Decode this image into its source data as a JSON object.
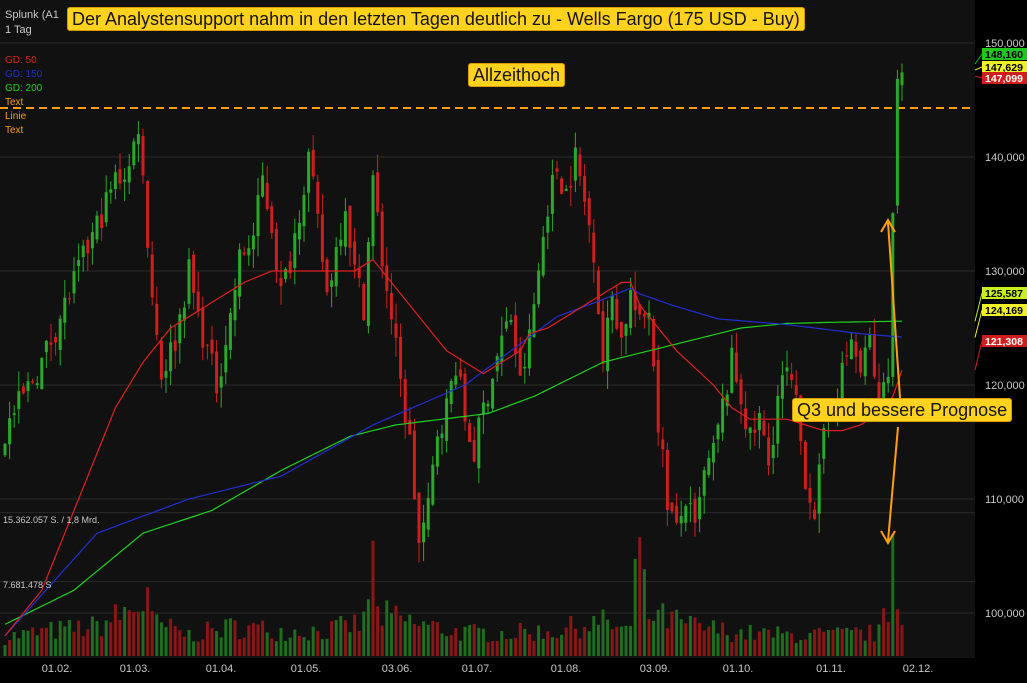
{
  "header": {
    "symbol": "Splunk (A1",
    "period": "1 Tag",
    "headline": "Der Analystensupport nahm in den letzten Tagen deutlich zu - Wells Fargo (175 USD - Buy)"
  },
  "legend": [
    {
      "label": "GD: 50",
      "color": "#e02020"
    },
    {
      "label": "GD: 150",
      "color": "#2030d0"
    },
    {
      "label": "GD: 200",
      "color": "#20d020"
    },
    {
      "label": "Text",
      "color": "#ff9f10"
    },
    {
      "label": "Linie",
      "color": "#ff9f10"
    },
    {
      "label": "Text",
      "color": "#ff9f10"
    }
  ],
  "annotations": {
    "allzeithoch": "Allzeithoch",
    "q3": "Q3 und bessere Prognose"
  },
  "volume_labels": {
    "upper": "15.362.057 S. / 1,8 Mrd.",
    "lower": "7.681.478 S"
  },
  "chart_data": {
    "type": "candlestick",
    "x_tick_labels": [
      "01.02.",
      "01.03.",
      "01.04.",
      "01.05.",
      "03.06.",
      "01.07.",
      "01.08.",
      "03.09.",
      "01.10.",
      "01.11.",
      "02.12."
    ],
    "y_tick_labels": [
      "100,000",
      "110,000",
      "120,000",
      "130,000",
      "140,000",
      "150,000"
    ],
    "ylim": [
      93,
      151
    ],
    "colors": {
      "up": "#2aa82a",
      "down": "#d01e1e",
      "resistance": "#ff9f10"
    },
    "resistance_level": 144.3,
    "price_badges": [
      {
        "label": "148,160",
        "value": 148.16,
        "bg": "#1ec81e",
        "fg": "#000000"
      },
      {
        "label": "147,629",
        "value": 147.629,
        "bg": "#f0f028",
        "fg": "#000000"
      },
      {
        "label": "147,099",
        "value": 147.099,
        "bg": "#d01e1e",
        "fg": "#ffffff"
      },
      {
        "label": "125,587",
        "value": 125.587,
        "bg": "#c8f01e",
        "fg": "#000000"
      },
      {
        "label": "124,169",
        "value": 124.169,
        "bg": "#f0f028",
        "fg": "#000000"
      },
      {
        "label": "121,308",
        "value": 121.308,
        "bg": "#d01e1e",
        "fg": "#ffffff"
      }
    ],
    "price_path": [
      [
        0,
        116
      ],
      [
        8,
        122
      ],
      [
        14,
        128
      ],
      [
        20,
        134
      ],
      [
        24,
        138
      ],
      [
        27,
        139
      ],
      [
        29,
        143
      ],
      [
        32,
        128
      ],
      [
        34,
        121
      ],
      [
        37,
        124
      ],
      [
        40,
        130
      ],
      [
        42,
        126
      ],
      [
        44,
        123
      ],
      [
        46,
        120
      ],
      [
        49,
        126
      ],
      [
        51,
        131
      ],
      [
        54,
        133
      ],
      [
        56,
        138
      ],
      [
        58,
        134
      ],
      [
        60,
        128
      ],
      [
        62,
        131
      ],
      [
        66,
        140
      ],
      [
        68,
        134
      ],
      [
        70,
        128
      ],
      [
        72,
        132
      ],
      [
        74,
        136
      ],
      [
        76,
        130
      ],
      [
        78,
        127
      ],
      [
        80,
        138
      ],
      [
        82,
        131
      ],
      [
        84,
        126
      ],
      [
        86,
        120
      ],
      [
        88,
        115
      ],
      [
        90,
        106
      ],
      [
        92,
        109
      ],
      [
        94,
        116
      ],
      [
        96,
        118
      ],
      [
        98,
        122
      ],
      [
        100,
        117
      ],
      [
        102,
        114
      ],
      [
        104,
        118
      ],
      [
        106,
        121
      ],
      [
        108,
        124
      ],
      [
        110,
        126
      ],
      [
        112,
        120
      ],
      [
        114,
        124
      ],
      [
        116,
        130
      ],
      [
        118,
        136
      ],
      [
        120,
        139
      ],
      [
        122,
        137
      ],
      [
        124,
        140
      ],
      [
        126,
        136
      ],
      [
        128,
        132
      ],
      [
        130,
        122
      ],
      [
        132,
        128
      ],
      [
        134,
        124
      ],
      [
        136,
        128
      ],
      [
        138,
        125
      ],
      [
        140,
        127
      ],
      [
        142,
        117
      ],
      [
        144,
        110
      ],
      [
        146,
        107
      ],
      [
        148,
        110
      ],
      [
        150,
        107
      ],
      [
        152,
        112
      ],
      [
        154,
        114
      ],
      [
        156,
        118
      ],
      [
        158,
        122
      ],
      [
        160,
        119
      ],
      [
        162,
        115
      ],
      [
        164,
        117
      ],
      [
        166,
        113
      ],
      [
        168,
        119
      ],
      [
        170,
        121
      ],
      [
        172,
        118
      ],
      [
        174,
        112
      ],
      [
        176,
        109
      ],
      [
        178,
        115
      ],
      [
        180,
        119
      ],
      [
        182,
        121
      ],
      [
        184,
        124
      ],
      [
        186,
        121
      ],
      [
        188,
        124
      ],
      [
        190,
        118
      ],
      [
        192,
        122
      ],
      [
        194,
        147
      ],
      [
        195,
        148.16
      ]
    ],
    "volume_path": [
      [
        0,
        0.9
      ],
      [
        10,
        1.2
      ],
      [
        20,
        1.4
      ],
      [
        30,
        2.5
      ],
      [
        31,
        3.0
      ],
      [
        32,
        1.6
      ],
      [
        40,
        1.0
      ],
      [
        50,
        1.4
      ],
      [
        60,
        1.2
      ],
      [
        70,
        1.2
      ],
      [
        78,
        1.6
      ],
      [
        80,
        4.6
      ],
      [
        81,
        2.0
      ],
      [
        90,
        1.5
      ],
      [
        100,
        1.1
      ],
      [
        110,
        1.1
      ],
      [
        120,
        1.2
      ],
      [
        126,
        1.5
      ],
      [
        130,
        1.6
      ],
      [
        136,
        1.2
      ],
      [
        138,
        6.0
      ],
      [
        139,
        3.0
      ],
      [
        140,
        2.0
      ],
      [
        150,
        1.4
      ],
      [
        160,
        1.1
      ],
      [
        170,
        1.0
      ],
      [
        180,
        1.0
      ],
      [
        190,
        1.1
      ],
      [
        192,
        2.2
      ],
      [
        193,
        6.0
      ],
      [
        194,
        3.2
      ],
      [
        195,
        1.5
      ]
    ],
    "sma50": [
      [
        0,
        98
      ],
      [
        8,
        102
      ],
      [
        14,
        108
      ],
      [
        20,
        114
      ],
      [
        24,
        118
      ],
      [
        30,
        122
      ],
      [
        36,
        125
      ],
      [
        44,
        127
      ],
      [
        52,
        129
      ],
      [
        58,
        130
      ],
      [
        66,
        130
      ],
      [
        72,
        130
      ],
      [
        76,
        130
      ],
      [
        80,
        131
      ],
      [
        84,
        129
      ],
      [
        88,
        127
      ],
      [
        92,
        125
      ],
      [
        96,
        123
      ],
      [
        100,
        122
      ],
      [
        104,
        121
      ],
      [
        108,
        122
      ],
      [
        112,
        123
      ],
      [
        114,
        124.5
      ],
      [
        118,
        125
      ],
      [
        122,
        126
      ],
      [
        126,
        127
      ],
      [
        130,
        128
      ],
      [
        134,
        129
      ],
      [
        136,
        129
      ],
      [
        138,
        127
      ],
      [
        142,
        125
      ],
      [
        146,
        123
      ],
      [
        150,
        121.5
      ],
      [
        154,
        120
      ],
      [
        158,
        118
      ],
      [
        162,
        117
      ],
      [
        166,
        117
      ],
      [
        170,
        117
      ],
      [
        174,
        116.5
      ],
      [
        178,
        116
      ],
      [
        182,
        116
      ],
      [
        186,
        116.5
      ],
      [
        190,
        117.5
      ],
      [
        193,
        119
      ],
      [
        195,
        121.3
      ]
    ],
    "sma150": [
      [
        0,
        98
      ],
      [
        20,
        107
      ],
      [
        40,
        110
      ],
      [
        60,
        112
      ],
      [
        80,
        116.5
      ],
      [
        100,
        120
      ],
      [
        120,
        126
      ],
      [
        130,
        127.5
      ],
      [
        136,
        128.5
      ],
      [
        138,
        128
      ],
      [
        145,
        127
      ],
      [
        155,
        125.8
      ],
      [
        170,
        125.3
      ],
      [
        186,
        124.5
      ],
      [
        195,
        124.2
      ]
    ],
    "sma200": [
      [
        0,
        99
      ],
      [
        15,
        102
      ],
      [
        30,
        107
      ],
      [
        45,
        109
      ],
      [
        60,
        112.5
      ],
      [
        75,
        115.5
      ],
      [
        85,
        116.5
      ],
      [
        95,
        117
      ],
      [
        105,
        117.5
      ],
      [
        115,
        119
      ],
      [
        125,
        121
      ],
      [
        130,
        122
      ],
      [
        140,
        123
      ],
      [
        150,
        124
      ],
      [
        160,
        125
      ],
      [
        170,
        125.4
      ],
      [
        180,
        125.5
      ],
      [
        195,
        125.6
      ]
    ]
  }
}
